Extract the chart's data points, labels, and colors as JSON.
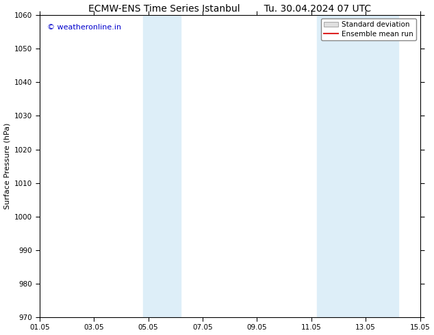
{
  "title_left": "ECMW-ENS Time Series Istanbul",
  "title_right": "Tu. 30.04.2024 07 UTC",
  "ylabel": "Surface Pressure (hPa)",
  "ylim": [
    970,
    1060
  ],
  "yticks": [
    970,
    980,
    990,
    1000,
    1010,
    1020,
    1030,
    1040,
    1050,
    1060
  ],
  "xlim_start": 0,
  "xlim_end": 14,
  "xtick_labels": [
    "01.05",
    "03.05",
    "05.05",
    "07.05",
    "09.05",
    "11.05",
    "13.05",
    "15.05"
  ],
  "xtick_positions": [
    0,
    2,
    4,
    6,
    8,
    10,
    12,
    14
  ],
  "shaded_regions": [
    {
      "xmin": 3.8,
      "xmax": 5.2,
      "color": "#ddeef8"
    },
    {
      "xmin": 10.2,
      "xmax": 11.8,
      "color": "#ddeef8"
    },
    {
      "xmin": 11.8,
      "xmax": 13.2,
      "color": "#ddeef8"
    }
  ],
  "watermark_text": "© weatheronline.in",
  "watermark_color": "#0000cc",
  "watermark_fontsize": 8,
  "title_fontsize": 10,
  "ylabel_fontsize": 8,
  "tick_fontsize": 7.5,
  "legend_label_std": "Standard deviation",
  "legend_label_ens": "Ensemble mean run",
  "legend_std_facecolor": "#e0e0e0",
  "legend_std_edgecolor": "#aaaaaa",
  "legend_ens_color": "#dd2222",
  "bg_color": "#ffffff",
  "spine_color": "#000000"
}
